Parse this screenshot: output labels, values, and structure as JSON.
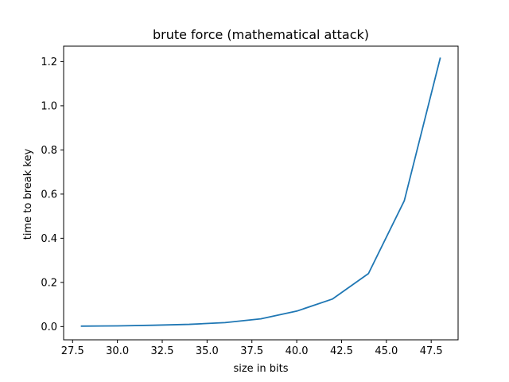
{
  "chart_data": {
    "type": "line",
    "title": "brute force (mathematical attack)",
    "xlabel": "size in bits",
    "ylabel": "time to break key",
    "xlim": [
      27.0,
      49.0
    ],
    "ylim": [
      -0.06,
      1.27
    ],
    "xticks": [
      27.5,
      30.0,
      32.5,
      35.0,
      37.5,
      40.0,
      42.5,
      45.0,
      47.5
    ],
    "xtick_labels": [
      "27.5",
      "30.0",
      "32.5",
      "35.0",
      "37.5",
      "40.0",
      "42.5",
      "45.0",
      "47.5"
    ],
    "yticks": [
      0.0,
      0.2,
      0.4,
      0.6,
      0.8,
      1.0,
      1.2
    ],
    "ytick_labels": [
      "0.0",
      "0.2",
      "0.4",
      "0.6",
      "0.8",
      "1.0",
      "1.2"
    ],
    "grid": false,
    "series": [
      {
        "color": "#1f77b4",
        "x": [
          28,
          30,
          32,
          34,
          36,
          38,
          40,
          42,
          44,
          46,
          48
        ],
        "y": [
          0.002,
          0.003,
          0.006,
          0.01,
          0.018,
          0.035,
          0.07,
          0.125,
          0.24,
          0.57,
          1.215
        ]
      }
    ]
  }
}
